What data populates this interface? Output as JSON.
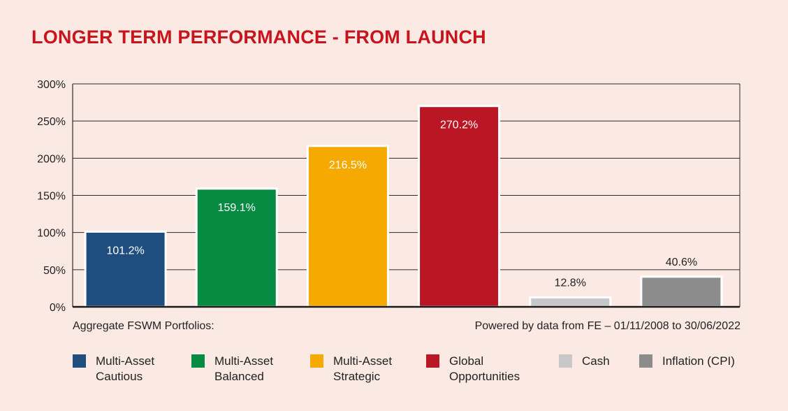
{
  "title": "LONGER TERM PERFORMANCE - FROM LAUNCH",
  "caption_left": "Aggregate FSWM Portfolios:",
  "caption_right": "Powered by data from FE – 01/11/2008 to 30/06/2022",
  "chart_data": {
    "type": "bar",
    "categories": [
      "Multi-Asset Cautious",
      "Multi-Asset Balanced",
      "Multi-Asset Strategic",
      "Global Opportunities",
      "Cash",
      "Inflation (CPI)"
    ],
    "values": [
      101.2,
      159.1,
      216.5,
      270.2,
      12.8,
      40.6
    ],
    "data_labels": [
      "101.2%",
      "159.1%",
      "216.5%",
      "270.2%",
      "12.8%",
      "40.6%"
    ],
    "colors": [
      "#1f4e7e",
      "#078a42",
      "#f6a900",
      "#bb1624",
      "#c8c8c8",
      "#8c8c8c"
    ],
    "label_inside": [
      true,
      true,
      true,
      true,
      false,
      false
    ],
    "y_ticks": [
      0,
      50,
      100,
      150,
      200,
      250,
      300
    ],
    "y_tick_labels": [
      "0%",
      "50%",
      "100%",
      "150%",
      "200%",
      "250%",
      "300%"
    ],
    "ylim": [
      0,
      300
    ],
    "grid": true,
    "legend_position": "bottom"
  },
  "legend": [
    {
      "lines": [
        "Multi-Asset",
        "Cautious"
      ],
      "color": "#1f4e7e"
    },
    {
      "lines": [
        "Multi-Asset",
        "Balanced"
      ],
      "color": "#078a42"
    },
    {
      "lines": [
        "Multi-Asset",
        "Strategic"
      ],
      "color": "#f6a900"
    },
    {
      "lines": [
        "Global",
        "Opportunities"
      ],
      "color": "#bb1624"
    },
    {
      "lines": [
        "Cash"
      ],
      "color": "#c8c8c8"
    },
    {
      "lines": [
        "Inflation (CPI)"
      ],
      "color": "#8c8c8c"
    }
  ]
}
